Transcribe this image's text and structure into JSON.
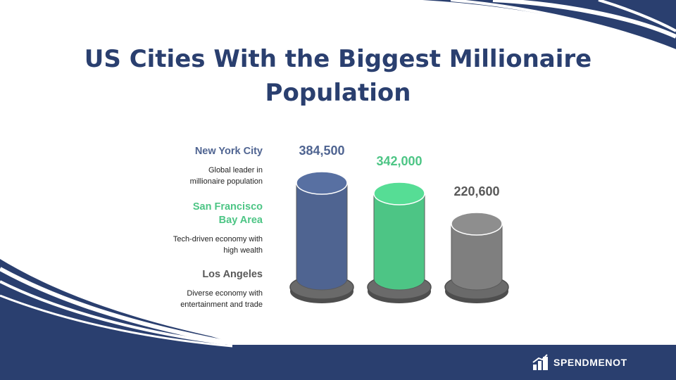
{
  "title": "US Cities With the Biggest Millionaire Population",
  "brand": {
    "name": "SPENDMENOT",
    "icon": "building-chart-icon"
  },
  "theme": {
    "navy": "#2a3f6f"
  },
  "chart_data": {
    "type": "bar",
    "categories": [
      "New York City",
      "San Francisco Bay Area",
      "Los Angeles"
    ],
    "values": [
      384500,
      342000,
      220600
    ],
    "value_labels": [
      "384,500",
      "342,000",
      "220,600"
    ],
    "legend_titles": [
      [
        "New York City"
      ],
      [
        "San Francisco",
        "Bay Area"
      ],
      [
        "Los Angeles"
      ]
    ],
    "descriptions": [
      [
        "Global leader in",
        "millionaire population"
      ],
      [
        "Tech-driven economy with",
        "high wealth"
      ],
      [
        "Diverse economy with",
        "entertainment and trade"
      ]
    ],
    "colors": [
      "#4f6491",
      "#4dc585",
      "#7f7f7f"
    ],
    "title": "",
    "xlabel": "",
    "ylabel": ""
  }
}
